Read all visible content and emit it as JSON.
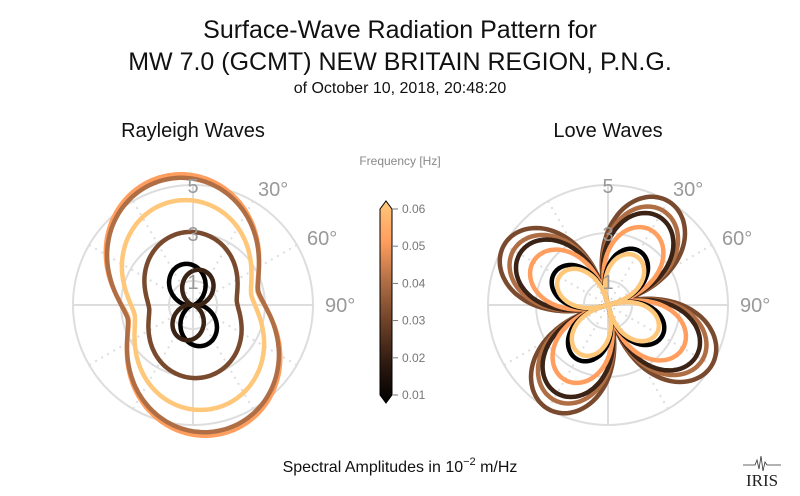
{
  "chart_data": {
    "type": "polar-line",
    "title_lines": [
      "Surface-Wave Radiation Pattern for",
      "MW 7.0 (GCMT) NEW BRITAIN REGION, P.N.G."
    ],
    "subtitle": "of October 10, 2018, 20:48:20",
    "footer": {
      "prefix": "Spectral Amplitudes in 10",
      "exponent": "−2",
      "suffix": " m/Hz"
    },
    "logo_text": "IRIS",
    "radial_ticks": [
      "1",
      "3",
      "5"
    ],
    "radial_tick_values": [
      1,
      3,
      5
    ],
    "radial_max": 5,
    "angle_ticks": [
      "30°",
      "60°",
      "90°"
    ],
    "angle_tick_values": [
      30,
      60,
      90
    ],
    "grid": true,
    "colorbar": {
      "label": "Frequency [Hz]",
      "ticks": [
        "0.06",
        "0.05",
        "0.04",
        "0.03",
        "0.02",
        "0.01"
      ],
      "tick_values": [
        0.06,
        0.05,
        0.04,
        0.03,
        0.02,
        0.01
      ],
      "range": [
        0.01,
        0.06
      ],
      "colors": [
        "#000000",
        "#2e1a10",
        "#6e4128",
        "#b06e45",
        "#ff9e5e",
        "#ffc77a"
      ]
    },
    "panels": [
      {
        "title": "Rayleigh Waves",
        "model": "rayleigh",
        "series": [
          {
            "frequency": 0.05,
            "color": "#ff9e5e",
            "max_amplitude": 5.5,
            "min_ratio": 0.5,
            "peak_azimuth": -12
          },
          {
            "frequency": 0.04,
            "color": "#b06e45",
            "max_amplitude": 5.35,
            "min_ratio": 0.52,
            "peak_azimuth": -12
          },
          {
            "frequency": 0.06,
            "color": "#ffc77a",
            "max_amplitude": 4.4,
            "min_ratio": 0.56,
            "peak_azimuth": -10
          },
          {
            "frequency": 0.035,
            "color": "#7a4a2e",
            "max_amplitude": 3.05,
            "min_ratio": 0.6,
            "peak_azimuth": -5
          },
          {
            "frequency": 0.01,
            "color": "#000000",
            "max_amplitude": 1.75,
            "min_ratio": 0.05,
            "peak_azimuth": -15
          },
          {
            "frequency": 0.02,
            "color": "#3b2416",
            "max_amplitude": 1.5,
            "min_ratio": 0.05,
            "peak_azimuth": 15
          }
        ]
      },
      {
        "title": "Love Waves",
        "model": "love",
        "series": [
          {
            "frequency": 0.035,
            "color": "#7a4a2e",
            "max_amplitude": 5.0,
            "peak_azimuth": 30
          },
          {
            "frequency": 0.04,
            "color": "#b06e45",
            "max_amplitude": 4.55,
            "peak_azimuth": 30
          },
          {
            "frequency": 0.02,
            "color": "#3b2416",
            "max_amplitude": 4.25,
            "peak_azimuth": 30
          },
          {
            "frequency": 0.05,
            "color": "#ff9e5e",
            "max_amplitude": 3.6,
            "peak_azimuth": 30
          },
          {
            "frequency": 0.01,
            "color": "#000000",
            "max_amplitude": 2.6,
            "peak_azimuth": 30
          },
          {
            "frequency": 0.06,
            "color": "#ffc77a",
            "max_amplitude": 2.35,
            "peak_azimuth": 30
          }
        ]
      }
    ]
  }
}
